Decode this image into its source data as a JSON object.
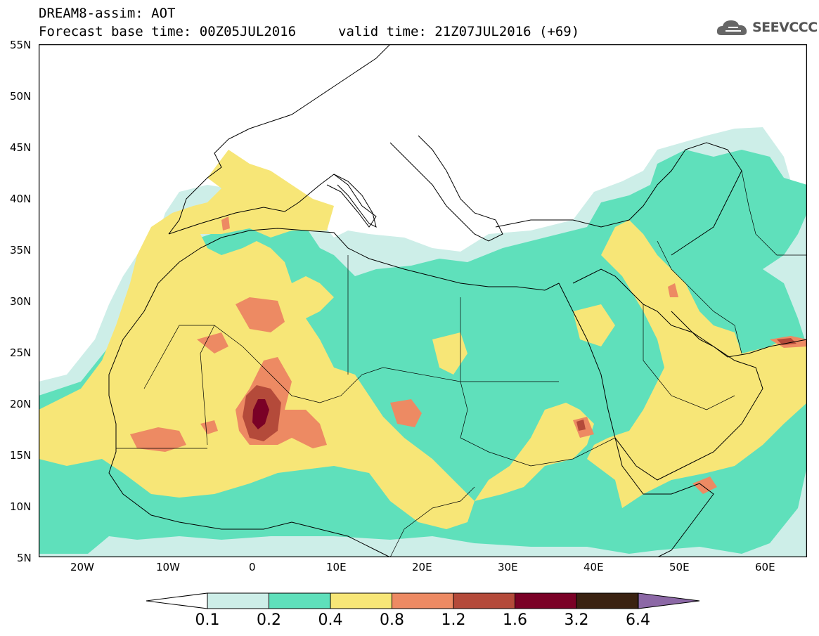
{
  "header": {
    "line1": "DREAM8-assim: AOT",
    "line2a": "Forecast base time: 00Z05JUL2016",
    "line2b": "valid time: 21Z07JUL2016 (+69)"
  },
  "logo": {
    "text": "SEEVCCC",
    "icon": "cloud-icon"
  },
  "map": {
    "lat_labels": [
      "55N",
      "50N",
      "45N",
      "40N",
      "35N",
      "30N",
      "25N",
      "20N",
      "15N",
      "10N",
      "5N"
    ],
    "lon_labels": [
      "20W",
      "10W",
      "0",
      "10E",
      "20E",
      "30E",
      "40E",
      "50E",
      "60E"
    ],
    "lat_range": [
      5,
      55
    ],
    "lon_range": [
      -25,
      65
    ],
    "field": "aerosol optical thickness"
  },
  "legend": {
    "labels": [
      "0.1",
      "0.2",
      "0.4",
      "0.8",
      "1.2",
      "1.6",
      "3.2",
      "6.4"
    ],
    "colors": [
      "#cdeee8",
      "#5fe0bb",
      "#f7e677",
      "#ed8a63",
      "#b44a3a",
      "#7a0126",
      "#3a2211",
      "#8c68a6"
    ],
    "low_color": "#ffffff"
  }
}
